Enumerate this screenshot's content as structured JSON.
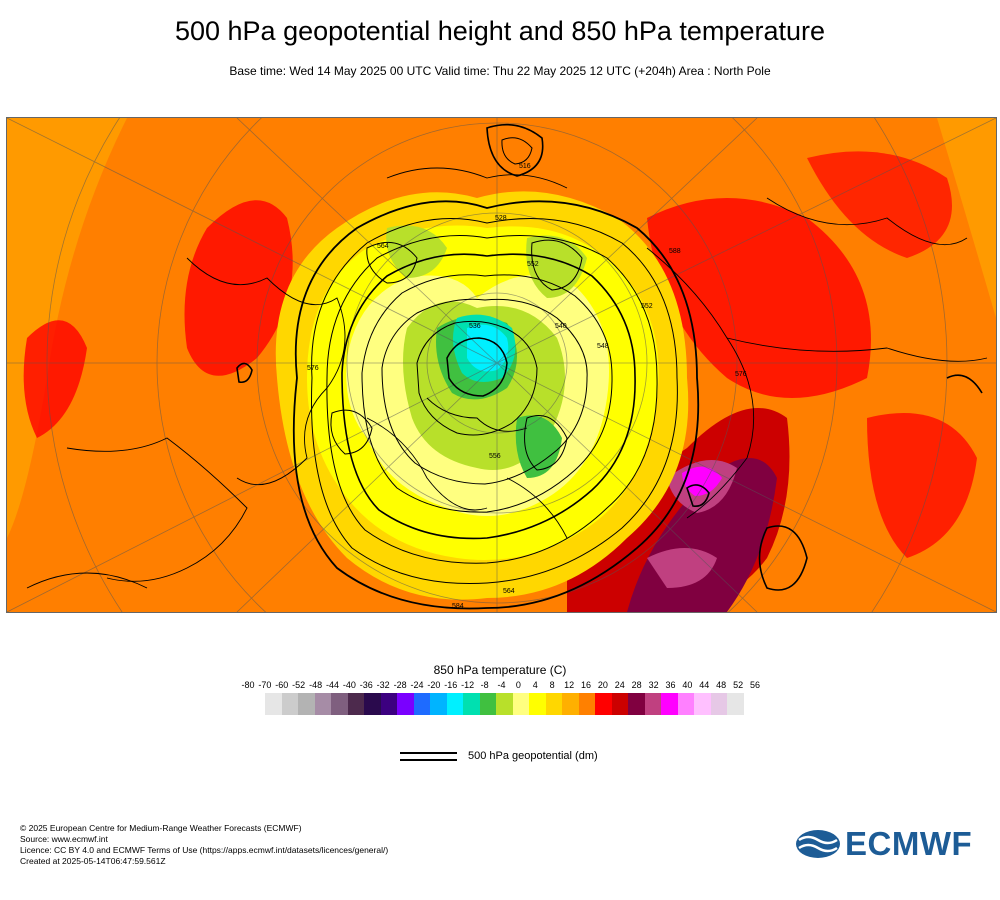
{
  "header": {
    "title": "500 hPa geopotential height and 850 hPa temperature",
    "subtitle": "Base time: Wed 14 May 2025 00 UTC Valid time: Thu 22 May 2025 12 UTC (+204h) Area : North Pole"
  },
  "map": {
    "contour_labels": [
      "528",
      "516",
      "564",
      "552",
      "540",
      "576",
      "588",
      "584",
      "536",
      "548",
      "556",
      "564",
      "552",
      "576"
    ]
  },
  "legend": {
    "temperature_title": "850 hPa temperature (C)",
    "tick_labels": [
      "-80",
      "-70",
      "-60",
      "-52",
      "-48",
      "-44",
      "-40",
      "-36",
      "-32",
      "-28",
      "-24",
      "-20",
      "-16",
      "-12",
      "-8",
      "-4",
      "0",
      "4",
      "8",
      "12",
      "16",
      "20",
      "24",
      "28",
      "32",
      "36",
      "40",
      "44",
      "48",
      "52",
      "56"
    ],
    "colors": [
      "#e6e6e6",
      "#cccccc",
      "#b3b3b3",
      "#a68ca6",
      "#7f5f7f",
      "#4d2a4d",
      "#2a0a4d",
      "#3c0080",
      "#7a00ff",
      "#1e6bff",
      "#00b4ff",
      "#00f0ff",
      "#00e0b0",
      "#40c040",
      "#b8e02a",
      "#ffff80",
      "#ffff00",
      "#ffd700",
      "#ffb000",
      "#ff8000",
      "#ff0000",
      "#cc0000",
      "#800040",
      "#c04080",
      "#ff00ff",
      "#ff80ff",
      "#ffc0ff",
      "#e6c8e6",
      "#e6e6e6"
    ],
    "geopotential_label": "500 hPa geopotential (dm)"
  },
  "footer": {
    "copyright": "© 2025 European Centre for Medium-Range Weather Forecasts (ECMWF)",
    "source": "Source: www.ecmwf.int",
    "licence": "Licence: CC BY 4.0 and ECMWF Terms of Use (https://apps.ecmwf.int/datasets/licences/general/)",
    "created": "Created at 2025-05-14T06:47:59.561Z",
    "logo_text": "ECMWF",
    "logo_color": "#1d5c96"
  }
}
